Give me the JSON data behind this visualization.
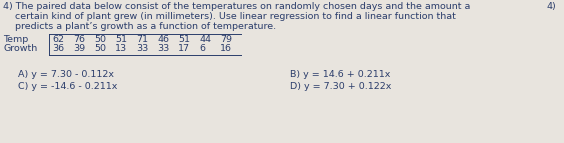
{
  "question_num_right": "4)",
  "line1": "4) The paired data below consist of the temperatures on randomly chosen days and the amount a",
  "line2": "    certain kind of plant grew (in millimeters). Use linear regression to find a linear function that",
  "line3": "    predicts a plant’s growth as a function of temperature.",
  "table_label1": "Temp",
  "table_label2": "Growth",
  "table_data1": [
    "62",
    "76",
    "50",
    "51",
    "71",
    "46",
    "51",
    "44",
    "79"
  ],
  "table_data2": [
    "36",
    "39",
    "50",
    "13",
    "33",
    "33",
    "17",
    "6",
    "16"
  ],
  "answer_A": "A) y = 7.30 - 0.112x",
  "answer_B": "B) y = 14.6 + 0.211x",
  "answer_C": "C) y = -14.6 - 0.211x",
  "answer_D": "D) y = 7.30 + 0.122x",
  "bg_color": "#e8e4de",
  "text_color": "#2b3d6b",
  "font_size": 6.8
}
